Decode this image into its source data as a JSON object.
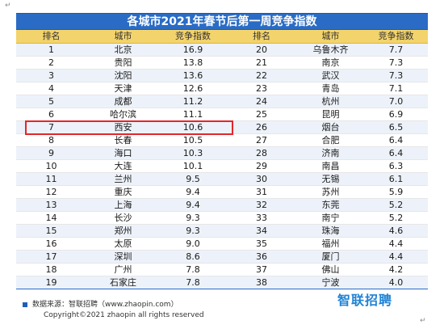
{
  "chart_data": {
    "type": "table",
    "title": "各城市2021年春节后第一周竞争指数",
    "columns": [
      "排名",
      "城市",
      "竞争指数",
      "排名",
      "城市",
      "竞争指数"
    ],
    "rows": [
      {
        "left": {
          "rank": "1",
          "city": "北京",
          "index": "16.9"
        },
        "right": {
          "rank": "20",
          "city": "乌鲁木齐",
          "index": "7.7"
        }
      },
      {
        "left": {
          "rank": "2",
          "city": "贵阳",
          "index": "13.8"
        },
        "right": {
          "rank": "21",
          "city": "南京",
          "index": "7.3"
        }
      },
      {
        "left": {
          "rank": "3",
          "city": "沈阳",
          "index": "13.6"
        },
        "right": {
          "rank": "22",
          "city": "武汉",
          "index": "7.3"
        }
      },
      {
        "left": {
          "rank": "4",
          "city": "天津",
          "index": "12.6"
        },
        "right": {
          "rank": "23",
          "city": "青岛",
          "index": "7.1"
        }
      },
      {
        "left": {
          "rank": "5",
          "city": "成都",
          "index": "11.2"
        },
        "right": {
          "rank": "24",
          "city": "杭州",
          "index": "7.0"
        }
      },
      {
        "left": {
          "rank": "6",
          "city": "哈尔滨",
          "index": "11.1"
        },
        "right": {
          "rank": "25",
          "city": "昆明",
          "index": "6.9"
        }
      },
      {
        "left": {
          "rank": "7",
          "city": "西安",
          "index": "10.6"
        },
        "right": {
          "rank": "26",
          "city": "烟台",
          "index": "6.5"
        }
      },
      {
        "left": {
          "rank": "8",
          "city": "长春",
          "index": "10.5"
        },
        "right": {
          "rank": "27",
          "city": "合肥",
          "index": "6.4"
        }
      },
      {
        "left": {
          "rank": "9",
          "city": "海口",
          "index": "10.3"
        },
        "right": {
          "rank": "28",
          "city": "济南",
          "index": "6.4"
        }
      },
      {
        "left": {
          "rank": "10",
          "city": "大连",
          "index": "10.1"
        },
        "right": {
          "rank": "29",
          "city": "南昌",
          "index": "6.3"
        }
      },
      {
        "left": {
          "rank": "11",
          "city": "兰州",
          "index": "9.5"
        },
        "right": {
          "rank": "30",
          "city": "无锡",
          "index": "6.1"
        }
      },
      {
        "left": {
          "rank": "12",
          "city": "重庆",
          "index": "9.4"
        },
        "right": {
          "rank": "31",
          "city": "苏州",
          "index": "5.9"
        }
      },
      {
        "left": {
          "rank": "13",
          "city": "上海",
          "index": "9.4"
        },
        "right": {
          "rank": "32",
          "city": "东莞",
          "index": "5.2"
        }
      },
      {
        "left": {
          "rank": "14",
          "city": "长沙",
          "index": "9.3"
        },
        "right": {
          "rank": "33",
          "city": "南宁",
          "index": "5.2"
        }
      },
      {
        "left": {
          "rank": "15",
          "city": "郑州",
          "index": "9.3"
        },
        "right": {
          "rank": "34",
          "city": "珠海",
          "index": "4.6"
        }
      },
      {
        "left": {
          "rank": "16",
          "city": "太原",
          "index": "9.0"
        },
        "right": {
          "rank": "35",
          "city": "福州",
          "index": "4.4"
        }
      },
      {
        "left": {
          "rank": "17",
          "city": "深圳",
          "index": "8.6"
        },
        "right": {
          "rank": "36",
          "city": "厦门",
          "index": "4.4"
        }
      },
      {
        "left": {
          "rank": "18",
          "city": "广州",
          "index": "7.8"
        },
        "right": {
          "rank": "37",
          "city": "佛山",
          "index": "4.2"
        }
      },
      {
        "left": {
          "rank": "19",
          "city": "石家庄",
          "index": "7.8"
        },
        "right": {
          "rank": "38",
          "city": "宁波",
          "index": "4.0"
        }
      }
    ],
    "highlighted_rank": "7"
  },
  "footer": {
    "source": "数据来源：智联招聘（www.zhaopin.com）",
    "copyright": "Copyright©2021 zhaopin all rights reserved",
    "logo": "智联招聘"
  },
  "marks": {
    "corner_tl": "↵",
    "corner_br": "↵"
  },
  "colors": {
    "title_bg": "#2a6cc5",
    "header_bg": "#f3d36b",
    "stripe": "#edf2fa",
    "highlight": "#e4262b",
    "logo": "#1e82d6"
  }
}
